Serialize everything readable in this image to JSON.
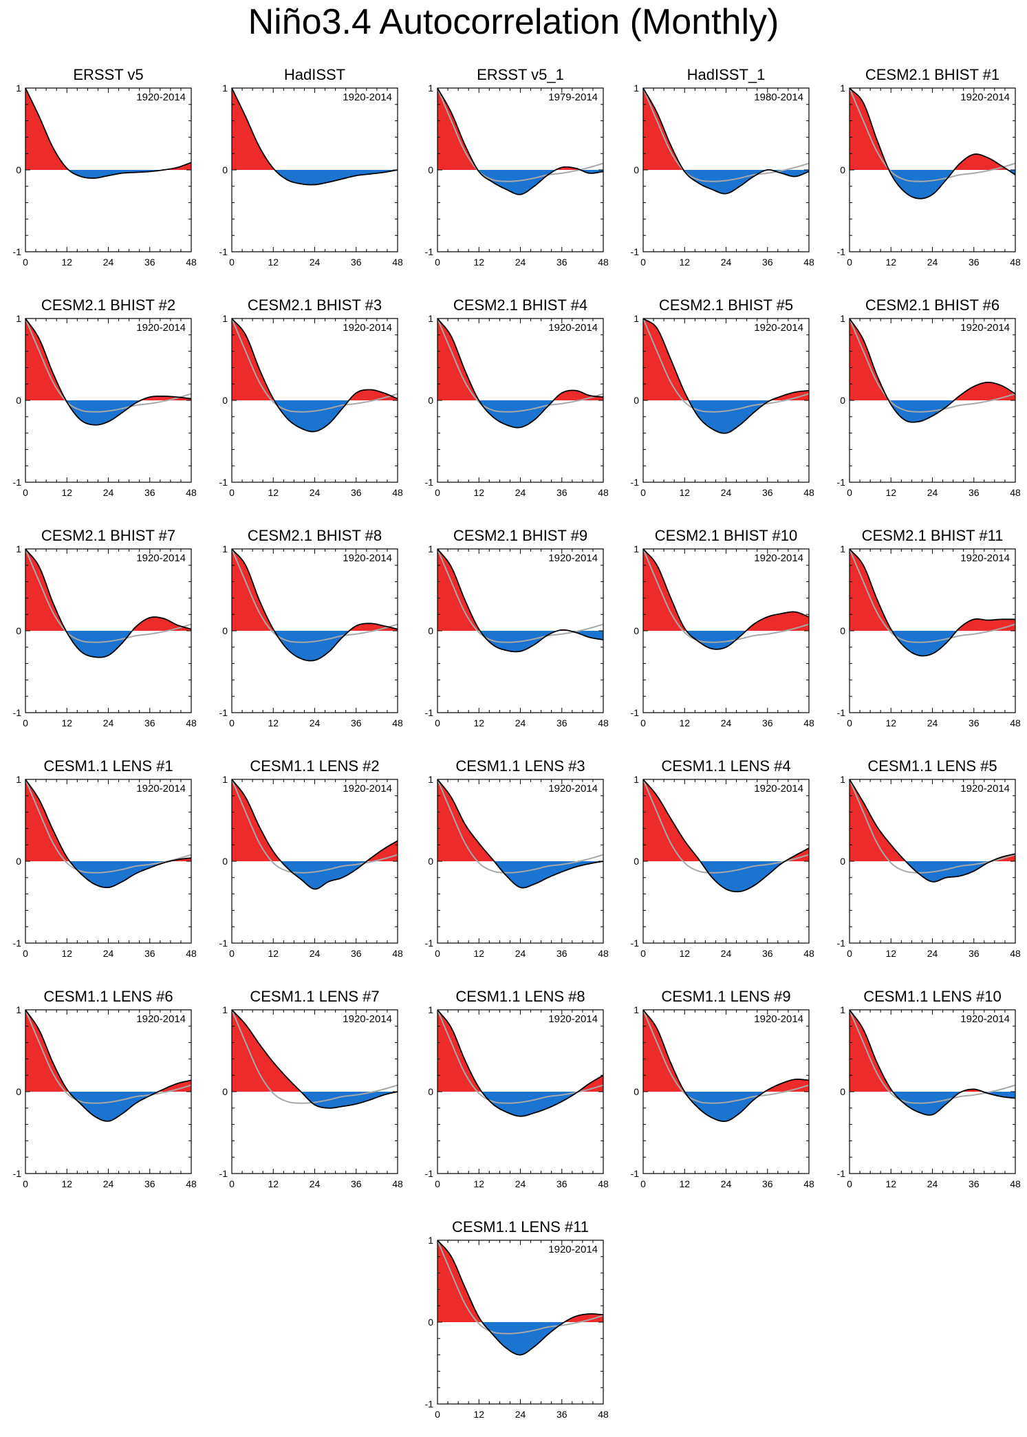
{
  "title": "Niño3.4 Autocorrelation (Monthly)",
  "colors": {
    "positive": "#ee2b2b",
    "negative": "#1b75d0",
    "outline": "#000000",
    "reference": "#a8a8a8"
  },
  "chart_data": [
    {
      "type": "area",
      "title": "ERSST v5",
      "annotation": "1920-2014",
      "xlim": [
        0,
        48
      ],
      "ylim": [
        -1,
        1
      ],
      "xticks": [
        0,
        12,
        24,
        36,
        48
      ],
      "yticks": [
        -1,
        0,
        1
      ],
      "x": [
        0,
        4,
        8,
        12,
        16,
        20,
        24,
        28,
        32,
        36,
        40,
        44,
        48
      ],
      "values": [
        1.0,
        0.65,
        0.27,
        0.02,
        -0.08,
        -0.1,
        -0.07,
        -0.04,
        -0.03,
        -0.02,
        0.0,
        0.03,
        0.09
      ]
    },
    {
      "type": "area",
      "title": "HadISST",
      "annotation": "1920-2014",
      "xlim": [
        0,
        48
      ],
      "ylim": [
        -1,
        1
      ],
      "xticks": [
        0,
        12,
        24,
        36,
        48
      ],
      "yticks": [
        -1,
        0,
        1
      ],
      "x": [
        0,
        4,
        8,
        12,
        16,
        20,
        24,
        28,
        32,
        36,
        40,
        44,
        48
      ],
      "values": [
        1.0,
        0.65,
        0.28,
        0.02,
        -0.12,
        -0.17,
        -0.18,
        -0.15,
        -0.11,
        -0.07,
        -0.05,
        -0.03,
        0.0
      ]
    },
    {
      "type": "area",
      "title": "ERSST v5_1",
      "annotation": "1979-2014",
      "xlim": [
        0,
        48
      ],
      "ylim": [
        -1,
        1
      ],
      "xticks": [
        0,
        12,
        24,
        36,
        48
      ],
      "yticks": [
        -1,
        0,
        1
      ],
      "x": [
        0,
        4,
        8,
        12,
        16,
        20,
        24,
        28,
        32,
        36,
        40,
        44,
        48
      ],
      "values": [
        1.0,
        0.7,
        0.3,
        -0.02,
        -0.15,
        -0.24,
        -0.3,
        -0.2,
        -0.06,
        0.03,
        0.02,
        -0.04,
        -0.02
      ]
    },
    {
      "type": "area",
      "title": "HadISST_1",
      "annotation": "1980-2014",
      "xlim": [
        0,
        48
      ],
      "ylim": [
        -1,
        1
      ],
      "xticks": [
        0,
        12,
        24,
        36,
        48
      ],
      "yticks": [
        -1,
        0,
        1
      ],
      "x": [
        0,
        4,
        8,
        12,
        16,
        20,
        24,
        28,
        32,
        36,
        40,
        44,
        48
      ],
      "values": [
        1.0,
        0.7,
        0.3,
        -0.02,
        -0.16,
        -0.24,
        -0.29,
        -0.2,
        -0.08,
        0.0,
        -0.04,
        -0.08,
        -0.02
      ]
    },
    {
      "type": "area",
      "title": "CESM2.1 BHIST #1",
      "annotation": "1920-2014",
      "xlim": [
        0,
        48
      ],
      "ylim": [
        -1,
        1
      ],
      "xticks": [
        0,
        12,
        24,
        36,
        48
      ],
      "yticks": [
        -1,
        0,
        1
      ],
      "x": [
        0,
        4,
        8,
        12,
        16,
        20,
        24,
        28,
        32,
        36,
        40,
        44,
        48
      ],
      "values": [
        1.0,
        0.82,
        0.36,
        -0.05,
        -0.27,
        -0.35,
        -0.3,
        -0.12,
        0.08,
        0.19,
        0.15,
        0.05,
        -0.06
      ]
    },
    {
      "type": "area",
      "title": "CESM2.1 BHIST #2",
      "annotation": "1920-2014",
      "xlim": [
        0,
        48
      ],
      "ylim": [
        -1,
        1
      ],
      "xticks": [
        0,
        12,
        24,
        36,
        48
      ],
      "yticks": [
        -1,
        0,
        1
      ],
      "x": [
        0,
        4,
        8,
        12,
        16,
        20,
        24,
        28,
        32,
        36,
        40,
        44,
        48
      ],
      "values": [
        1.0,
        0.75,
        0.33,
        -0.02,
        -0.24,
        -0.3,
        -0.26,
        -0.15,
        -0.03,
        0.04,
        0.05,
        0.04,
        0.02
      ]
    },
    {
      "type": "area",
      "title": "CESM2.1 BHIST #3",
      "annotation": "1920-2014",
      "xlim": [
        0,
        48
      ],
      "ylim": [
        -1,
        1
      ],
      "xticks": [
        0,
        12,
        24,
        36,
        48
      ],
      "yticks": [
        -1,
        0,
        1
      ],
      "x": [
        0,
        4,
        8,
        12,
        16,
        20,
        24,
        28,
        32,
        36,
        40,
        44,
        48
      ],
      "values": [
        1.0,
        0.8,
        0.38,
        0.02,
        -0.22,
        -0.34,
        -0.38,
        -0.29,
        -0.1,
        0.09,
        0.13,
        0.09,
        0.02
      ]
    },
    {
      "type": "area",
      "title": "CESM2.1 BHIST #4",
      "annotation": "1920-2014",
      "xlim": [
        0,
        48
      ],
      "ylim": [
        -1,
        1
      ],
      "xticks": [
        0,
        12,
        24,
        36,
        48
      ],
      "yticks": [
        -1,
        0,
        1
      ],
      "x": [
        0,
        4,
        8,
        12,
        16,
        20,
        24,
        28,
        32,
        36,
        40,
        44,
        48
      ],
      "values": [
        1.0,
        0.78,
        0.36,
        0.0,
        -0.2,
        -0.3,
        -0.33,
        -0.24,
        -0.07,
        0.09,
        0.12,
        0.06,
        0.04
      ]
    },
    {
      "type": "area",
      "title": "CESM2.1 BHIST #5",
      "annotation": "1920-2014",
      "xlim": [
        0,
        48
      ],
      "ylim": [
        -1,
        1
      ],
      "xticks": [
        0,
        12,
        24,
        36,
        48
      ],
      "yticks": [
        -1,
        0,
        1
      ],
      "x": [
        0,
        4,
        8,
        12,
        16,
        20,
        24,
        28,
        32,
        36,
        40,
        44,
        48
      ],
      "values": [
        1.0,
        0.88,
        0.5,
        0.1,
        -0.2,
        -0.35,
        -0.4,
        -0.3,
        -0.15,
        -0.02,
        0.05,
        0.1,
        0.12
      ]
    },
    {
      "type": "area",
      "title": "CESM2.1 BHIST #6",
      "annotation": "1920-2014",
      "xlim": [
        0,
        48
      ],
      "ylim": [
        -1,
        1
      ],
      "xticks": [
        0,
        12,
        24,
        36,
        48
      ],
      "yticks": [
        -1,
        0,
        1
      ],
      "x": [
        0,
        4,
        8,
        12,
        16,
        20,
        24,
        28,
        32,
        36,
        40,
        44,
        48
      ],
      "values": [
        1.0,
        0.74,
        0.3,
        -0.05,
        -0.24,
        -0.26,
        -0.19,
        -0.08,
        0.06,
        0.17,
        0.22,
        0.18,
        0.08
      ]
    },
    {
      "type": "area",
      "title": "CESM2.1 BHIST #7",
      "annotation": "1920-2014",
      "xlim": [
        0,
        48
      ],
      "ylim": [
        -1,
        1
      ],
      "xticks": [
        0,
        12,
        24,
        36,
        48
      ],
      "yticks": [
        -1,
        0,
        1
      ],
      "x": [
        0,
        4,
        8,
        12,
        16,
        20,
        24,
        28,
        32,
        36,
        40,
        44,
        48
      ],
      "values": [
        1.0,
        0.78,
        0.34,
        -0.02,
        -0.25,
        -0.32,
        -0.3,
        -0.15,
        0.05,
        0.16,
        0.15,
        0.07,
        0.02
      ]
    },
    {
      "type": "area",
      "title": "CESM2.1 BHIST #8",
      "annotation": "1920-2014",
      "xlim": [
        0,
        48
      ],
      "ylim": [
        -1,
        1
      ],
      "xticks": [
        0,
        12,
        24,
        36,
        48
      ],
      "yticks": [
        -1,
        0,
        1
      ],
      "x": [
        0,
        4,
        8,
        12,
        16,
        20,
        24,
        28,
        32,
        36,
        40,
        44,
        48
      ],
      "values": [
        1.0,
        0.8,
        0.37,
        0.02,
        -0.22,
        -0.34,
        -0.36,
        -0.26,
        -0.08,
        0.06,
        0.09,
        0.06,
        0.02
      ]
    },
    {
      "type": "area",
      "title": "CESM2.1 BHIST #9",
      "annotation": "1920-2014",
      "xlim": [
        0,
        48
      ],
      "ylim": [
        -1,
        1
      ],
      "xticks": [
        0,
        12,
        24,
        36,
        48
      ],
      "yticks": [
        -1,
        0,
        1
      ],
      "x": [
        0,
        4,
        8,
        12,
        16,
        20,
        24,
        28,
        32,
        36,
        40,
        44,
        48
      ],
      "values": [
        1.0,
        0.78,
        0.37,
        0.02,
        -0.17,
        -0.24,
        -0.25,
        -0.17,
        -0.05,
        0.01,
        -0.02,
        -0.08,
        -0.11
      ]
    },
    {
      "type": "area",
      "title": "CESM2.1 BHIST #10",
      "annotation": "1920-2014",
      "xlim": [
        0,
        48
      ],
      "ylim": [
        -1,
        1
      ],
      "xticks": [
        0,
        12,
        24,
        36,
        48
      ],
      "yticks": [
        -1,
        0,
        1
      ],
      "x": [
        0,
        4,
        8,
        12,
        16,
        20,
        24,
        28,
        32,
        36,
        40,
        44,
        48
      ],
      "values": [
        1.0,
        0.8,
        0.4,
        0.03,
        -0.13,
        -0.22,
        -0.2,
        -0.07,
        0.08,
        0.17,
        0.21,
        0.23,
        0.17
      ]
    },
    {
      "type": "area",
      "title": "CESM2.1 BHIST #11",
      "annotation": "1920-2014",
      "xlim": [
        0,
        48
      ],
      "ylim": [
        -1,
        1
      ],
      "xticks": [
        0,
        12,
        24,
        36,
        48
      ],
      "yticks": [
        -1,
        0,
        1
      ],
      "x": [
        0,
        4,
        8,
        12,
        16,
        20,
        24,
        28,
        32,
        36,
        40,
        44,
        48
      ],
      "values": [
        1.0,
        0.8,
        0.38,
        0.02,
        -0.2,
        -0.3,
        -0.28,
        -0.15,
        0.04,
        0.14,
        0.13,
        0.14,
        0.14
      ]
    },
    {
      "type": "area",
      "title": "CESM1.1 LENS #1",
      "annotation": "1920-2014",
      "xlim": [
        0,
        48
      ],
      "ylim": [
        -1,
        1
      ],
      "xticks": [
        0,
        12,
        24,
        36,
        48
      ],
      "yticks": [
        -1,
        0,
        1
      ],
      "x": [
        0,
        4,
        8,
        12,
        16,
        20,
        24,
        28,
        32,
        36,
        40,
        44,
        48
      ],
      "values": [
        1.0,
        0.75,
        0.38,
        0.05,
        -0.15,
        -0.28,
        -0.32,
        -0.25,
        -0.15,
        -0.08,
        -0.02,
        0.02,
        0.04
      ]
    },
    {
      "type": "area",
      "title": "CESM1.1 LENS #2",
      "annotation": "1920-2014",
      "xlim": [
        0,
        48
      ],
      "ylim": [
        -1,
        1
      ],
      "xticks": [
        0,
        12,
        24,
        36,
        48
      ],
      "yticks": [
        -1,
        0,
        1
      ],
      "x": [
        0,
        4,
        8,
        12,
        16,
        20,
        24,
        28,
        32,
        36,
        40,
        44,
        48
      ],
      "values": [
        1.0,
        0.78,
        0.42,
        0.12,
        -0.08,
        -0.22,
        -0.34,
        -0.25,
        -0.2,
        -0.1,
        0.03,
        0.15,
        0.25
      ]
    },
    {
      "type": "area",
      "title": "CESM1.1 LENS #3",
      "annotation": "1920-2014",
      "xlim": [
        0,
        48
      ],
      "ylim": [
        -1,
        1
      ],
      "xticks": [
        0,
        12,
        24,
        36,
        48
      ],
      "yticks": [
        -1,
        0,
        1
      ],
      "x": [
        0,
        4,
        8,
        12,
        16,
        20,
        24,
        28,
        32,
        36,
        40,
        44,
        48
      ],
      "values": [
        1.0,
        0.78,
        0.45,
        0.22,
        0.02,
        -0.18,
        -0.32,
        -0.28,
        -0.2,
        -0.13,
        -0.07,
        -0.03,
        0.0
      ]
    },
    {
      "type": "area",
      "title": "CESM1.1 LENS #4",
      "annotation": "1920-2014",
      "xlim": [
        0,
        48
      ],
      "ylim": [
        -1,
        1
      ],
      "xticks": [
        0,
        12,
        24,
        36,
        48
      ],
      "yticks": [
        -1,
        0,
        1
      ],
      "x": [
        0,
        4,
        8,
        12,
        16,
        20,
        24,
        28,
        32,
        36,
        40,
        44,
        48
      ],
      "values": [
        1.0,
        0.8,
        0.52,
        0.25,
        0.03,
        -0.2,
        -0.34,
        -0.37,
        -0.3,
        -0.17,
        -0.03,
        0.07,
        0.16
      ]
    },
    {
      "type": "area",
      "title": "CESM1.1 LENS #5",
      "annotation": "1920-2014",
      "xlim": [
        0,
        48
      ],
      "ylim": [
        -1,
        1
      ],
      "xticks": [
        0,
        12,
        24,
        36,
        48
      ],
      "yticks": [
        -1,
        0,
        1
      ],
      "x": [
        0,
        4,
        8,
        12,
        16,
        20,
        24,
        28,
        32,
        36,
        40,
        44,
        48
      ],
      "values": [
        1.0,
        0.72,
        0.42,
        0.2,
        0.01,
        -0.15,
        -0.25,
        -0.2,
        -0.18,
        -0.12,
        -0.02,
        0.05,
        0.09
      ]
    },
    {
      "type": "area",
      "title": "CESM1.1 LENS #6",
      "annotation": "1920-2014",
      "xlim": [
        0,
        48
      ],
      "ylim": [
        -1,
        1
      ],
      "xticks": [
        0,
        12,
        24,
        36,
        48
      ],
      "yticks": [
        -1,
        0,
        1
      ],
      "x": [
        0,
        4,
        8,
        12,
        16,
        20,
        24,
        28,
        32,
        36,
        40,
        44,
        48
      ],
      "values": [
        1.0,
        0.75,
        0.35,
        0.03,
        -0.15,
        -0.3,
        -0.36,
        -0.27,
        -0.14,
        -0.05,
        0.03,
        0.1,
        0.14
      ]
    },
    {
      "type": "area",
      "title": "CESM1.1 LENS #7",
      "annotation": "1920-2014",
      "xlim": [
        0,
        48
      ],
      "ylim": [
        -1,
        1
      ],
      "xticks": [
        0,
        12,
        24,
        36,
        48
      ],
      "yticks": [
        -1,
        0,
        1
      ],
      "x": [
        0,
        4,
        8,
        12,
        16,
        20,
        24,
        28,
        32,
        36,
        40,
        44,
        48
      ],
      "values": [
        1.0,
        0.82,
        0.58,
        0.36,
        0.17,
        0.0,
        -0.16,
        -0.2,
        -0.18,
        -0.15,
        -0.1,
        -0.04,
        0.0
      ]
    },
    {
      "type": "area",
      "title": "CESM1.1 LENS #8",
      "annotation": "1920-2014",
      "xlim": [
        0,
        48
      ],
      "ylim": [
        -1,
        1
      ],
      "xticks": [
        0,
        12,
        24,
        36,
        48
      ],
      "yticks": [
        -1,
        0,
        1
      ],
      "x": [
        0,
        4,
        8,
        12,
        16,
        20,
        24,
        28,
        32,
        36,
        40,
        44,
        48
      ],
      "values": [
        1.0,
        0.78,
        0.38,
        0.05,
        -0.15,
        -0.25,
        -0.3,
        -0.26,
        -0.2,
        -0.12,
        -0.02,
        0.1,
        0.2
      ]
    },
    {
      "type": "area",
      "title": "CESM1.1 LENS #9",
      "annotation": "1920-2014",
      "xlim": [
        0,
        48
      ],
      "ylim": [
        -1,
        1
      ],
      "xticks": [
        0,
        12,
        24,
        36,
        48
      ],
      "yticks": [
        -1,
        0,
        1
      ],
      "x": [
        0,
        4,
        8,
        12,
        16,
        20,
        24,
        28,
        32,
        36,
        40,
        44,
        48
      ],
      "values": [
        1.0,
        0.77,
        0.35,
        0.0,
        -0.2,
        -0.32,
        -0.36,
        -0.26,
        -0.1,
        0.02,
        0.1,
        0.15,
        0.14
      ]
    },
    {
      "type": "area",
      "title": "CESM1.1 LENS #10",
      "annotation": "1920-2014",
      "xlim": [
        0,
        48
      ],
      "ylim": [
        -1,
        1
      ],
      "xticks": [
        0,
        12,
        24,
        36,
        48
      ],
      "yticks": [
        -1,
        0,
        1
      ],
      "x": [
        0,
        4,
        8,
        12,
        16,
        20,
        24,
        28,
        32,
        36,
        40,
        44,
        48
      ],
      "values": [
        1.0,
        0.76,
        0.35,
        0.03,
        -0.15,
        -0.25,
        -0.28,
        -0.15,
        -0.01,
        0.03,
        -0.02,
        -0.06,
        -0.08
      ]
    },
    {
      "type": "area",
      "title": "CESM1.1 LENS #11",
      "annotation": "1920-2014",
      "xlim": [
        0,
        48
      ],
      "ylim": [
        -1,
        1
      ],
      "xticks": [
        0,
        12,
        24,
        36,
        48
      ],
      "yticks": [
        -1,
        0,
        1
      ],
      "x": [
        0,
        4,
        8,
        12,
        16,
        20,
        24,
        28,
        32,
        36,
        40,
        44,
        48
      ],
      "values": [
        1.0,
        0.8,
        0.42,
        0.06,
        -0.15,
        -0.32,
        -0.4,
        -0.3,
        -0.15,
        -0.02,
        0.07,
        0.1,
        0.09
      ]
    }
  ],
  "reference_series": {
    "x": [
      0,
      4,
      8,
      12,
      16,
      20,
      24,
      28,
      32,
      36,
      40,
      44,
      48
    ],
    "values": [
      1.0,
      0.6,
      0.22,
      -0.02,
      -0.12,
      -0.14,
      -0.13,
      -0.1,
      -0.06,
      -0.04,
      -0.01,
      0.03,
      0.08
    ]
  }
}
